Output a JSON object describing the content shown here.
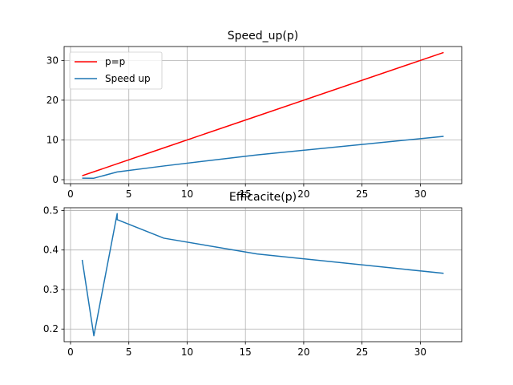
{
  "chart_data": [
    {
      "type": "line",
      "title": "Speed_up(p)",
      "xlabel": "",
      "ylabel": "",
      "xlim": [
        -0.55,
        33.55
      ],
      "ylim": [
        -1.0,
        33.5
      ],
      "xticks": [
        0,
        5,
        10,
        15,
        20,
        25,
        30
      ],
      "yticks": [
        0,
        10,
        20,
        30
      ],
      "grid": true,
      "legend": "upper-left",
      "series": [
        {
          "name": "p=p",
          "color": "#ff0000",
          "x": [
            1,
            2,
            4,
            8,
            16,
            32
          ],
          "y": [
            1,
            2,
            4,
            8,
            16,
            32
          ]
        },
        {
          "name": "Speed up",
          "color": "#1f77b4",
          "x": [
            1,
            2,
            4,
            8,
            16,
            32
          ],
          "y": [
            0.38,
            0.37,
            1.95,
            3.45,
            6.25,
            10.9
          ]
        }
      ]
    },
    {
      "type": "line",
      "title": "Efficacite(p)",
      "xlabel": "",
      "ylabel": "",
      "xlim": [
        -0.55,
        33.55
      ],
      "ylim": [
        0.168,
        0.507
      ],
      "xticks": [
        0,
        5,
        10,
        15,
        20,
        25,
        30
      ],
      "yticks": [
        0.2,
        0.3,
        0.4,
        0.5
      ],
      "grid": true,
      "series": [
        {
          "name": "",
          "color": "#1f77b4",
          "x": [
            1,
            2,
            4,
            4,
            8,
            16,
            32
          ],
          "y": [
            0.375,
            0.183,
            0.492,
            0.477,
            0.43,
            0.39,
            0.341
          ]
        }
      ]
    }
  ]
}
